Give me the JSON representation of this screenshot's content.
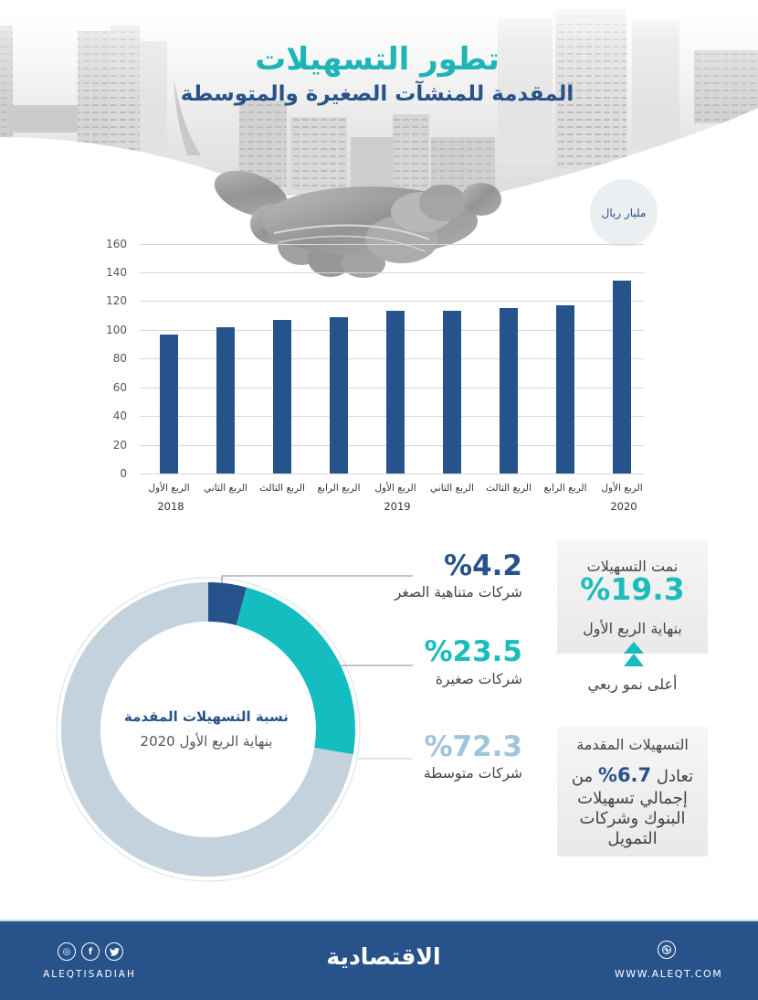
{
  "header": {
    "title": "تطور التسهيلات",
    "subtitle": "المقدمة للمنشآت الصغيرة والمتوسطة",
    "illustration": "handshake-cityscape"
  },
  "bar_chart": {
    "unit_label": "مليار ريال",
    "y_ticks": [
      "160",
      "140",
      "120",
      "100",
      "80",
      "60",
      "40",
      "20",
      "0"
    ],
    "x_labels": [
      "الربع الأول",
      "الربع الثاني",
      "الربع الثالث",
      "الربع الرابع",
      "الربع الأول",
      "الربع الثاني",
      "الربع الثالث",
      "الربع الرابع",
      "الربع الأول"
    ],
    "years": [
      {
        "label": "2018",
        "bar_index": 0
      },
      {
        "label": "2019",
        "bar_index": 4
      },
      {
        "label": "2020",
        "bar_index": 8
      }
    ]
  },
  "donut": {
    "center_title": "نسبة التسهيلات المقدمة",
    "center_subtitle": "بنهاية الربع الأول 2020",
    "segments": [
      {
        "value": 4.2,
        "value_label": "%4.2",
        "label": "شركات متناهية الصغر",
        "color": "#27538c",
        "text_color": "#27538c"
      },
      {
        "value": 23.5,
        "value_label": "%23.5",
        "label": "شركات صغيرة",
        "color": "#14bdbf",
        "text_color": "#1bbcbc"
      },
      {
        "value": 72.3,
        "value_label": "%72.3",
        "label": "شركات متوسطة",
        "color": "#c3d2dc",
        "text_color": "#9fc5d8"
      }
    ]
  },
  "growth_box": {
    "line1": "نمت التسهيلات",
    "value": "%19.3",
    "line2": "بنهاية الربع الأول",
    "caption": "أعلى نمو ربعي",
    "icon": "double-chevron-up-icon"
  },
  "share_box": {
    "title": "التسهيلات المقدمة",
    "prefix": "تعادل",
    "value": "%6.7",
    "suffix": "من",
    "line3": "إجمالي تسهيلات",
    "line4": "البنوك وشركات",
    "line5": "التمويل"
  },
  "footer": {
    "social_icons": [
      {
        "name": "instagram-icon",
        "glyph": "◎"
      },
      {
        "name": "facebook-icon",
        "glyph": "f"
      },
      {
        "name": "twitter-icon",
        "glyph": "🐦"
      }
    ],
    "social_handle": "ALEQTISADIAH",
    "logo": "الاقتصادية",
    "web_icon": "globe-icon",
    "website": "WWW.ALEQT.COM"
  },
  "colors": {
    "teal": "#1eb5b6",
    "navy": "#27538c",
    "footer_bg": "#27528a",
    "light_blue": "#9fc5d8",
    "gray_segment": "#c3d2dc"
  },
  "chart_data": [
    {
      "type": "bar",
      "title": "تطور التسهيلات المقدمة للمنشآت الصغيرة والمتوسطة",
      "ylabel": "مليار ريال",
      "xlabel": "",
      "categories": [
        "الربع الأول 2018",
        "الربع الثاني 2018",
        "الربع الثالث 2018",
        "الربع الرابع 2018",
        "الربع الأول 2019",
        "الربع الثاني 2019",
        "الربع الثالث 2019",
        "الربع الرابع 2019",
        "الربع الأول 2020"
      ],
      "values": [
        97,
        102,
        107,
        109,
        113,
        113,
        115,
        117,
        134
      ],
      "ylim": [
        0,
        160
      ],
      "y_ticks": [
        0,
        20,
        40,
        60,
        80,
        100,
        120,
        140,
        160
      ],
      "grid": true,
      "bar_color": "#27538c"
    },
    {
      "type": "pie",
      "subtype": "donut",
      "title": "نسبة التسهيلات المقدمة بنهاية الربع الأول 2020",
      "categories": [
        "شركات متناهية الصغر",
        "شركات صغيرة",
        "شركات متوسطة"
      ],
      "values": [
        4.2,
        23.5,
        72.3
      ],
      "unit": "%",
      "colors": [
        "#27538c",
        "#14bdbf",
        "#c3d2dc"
      ]
    }
  ]
}
